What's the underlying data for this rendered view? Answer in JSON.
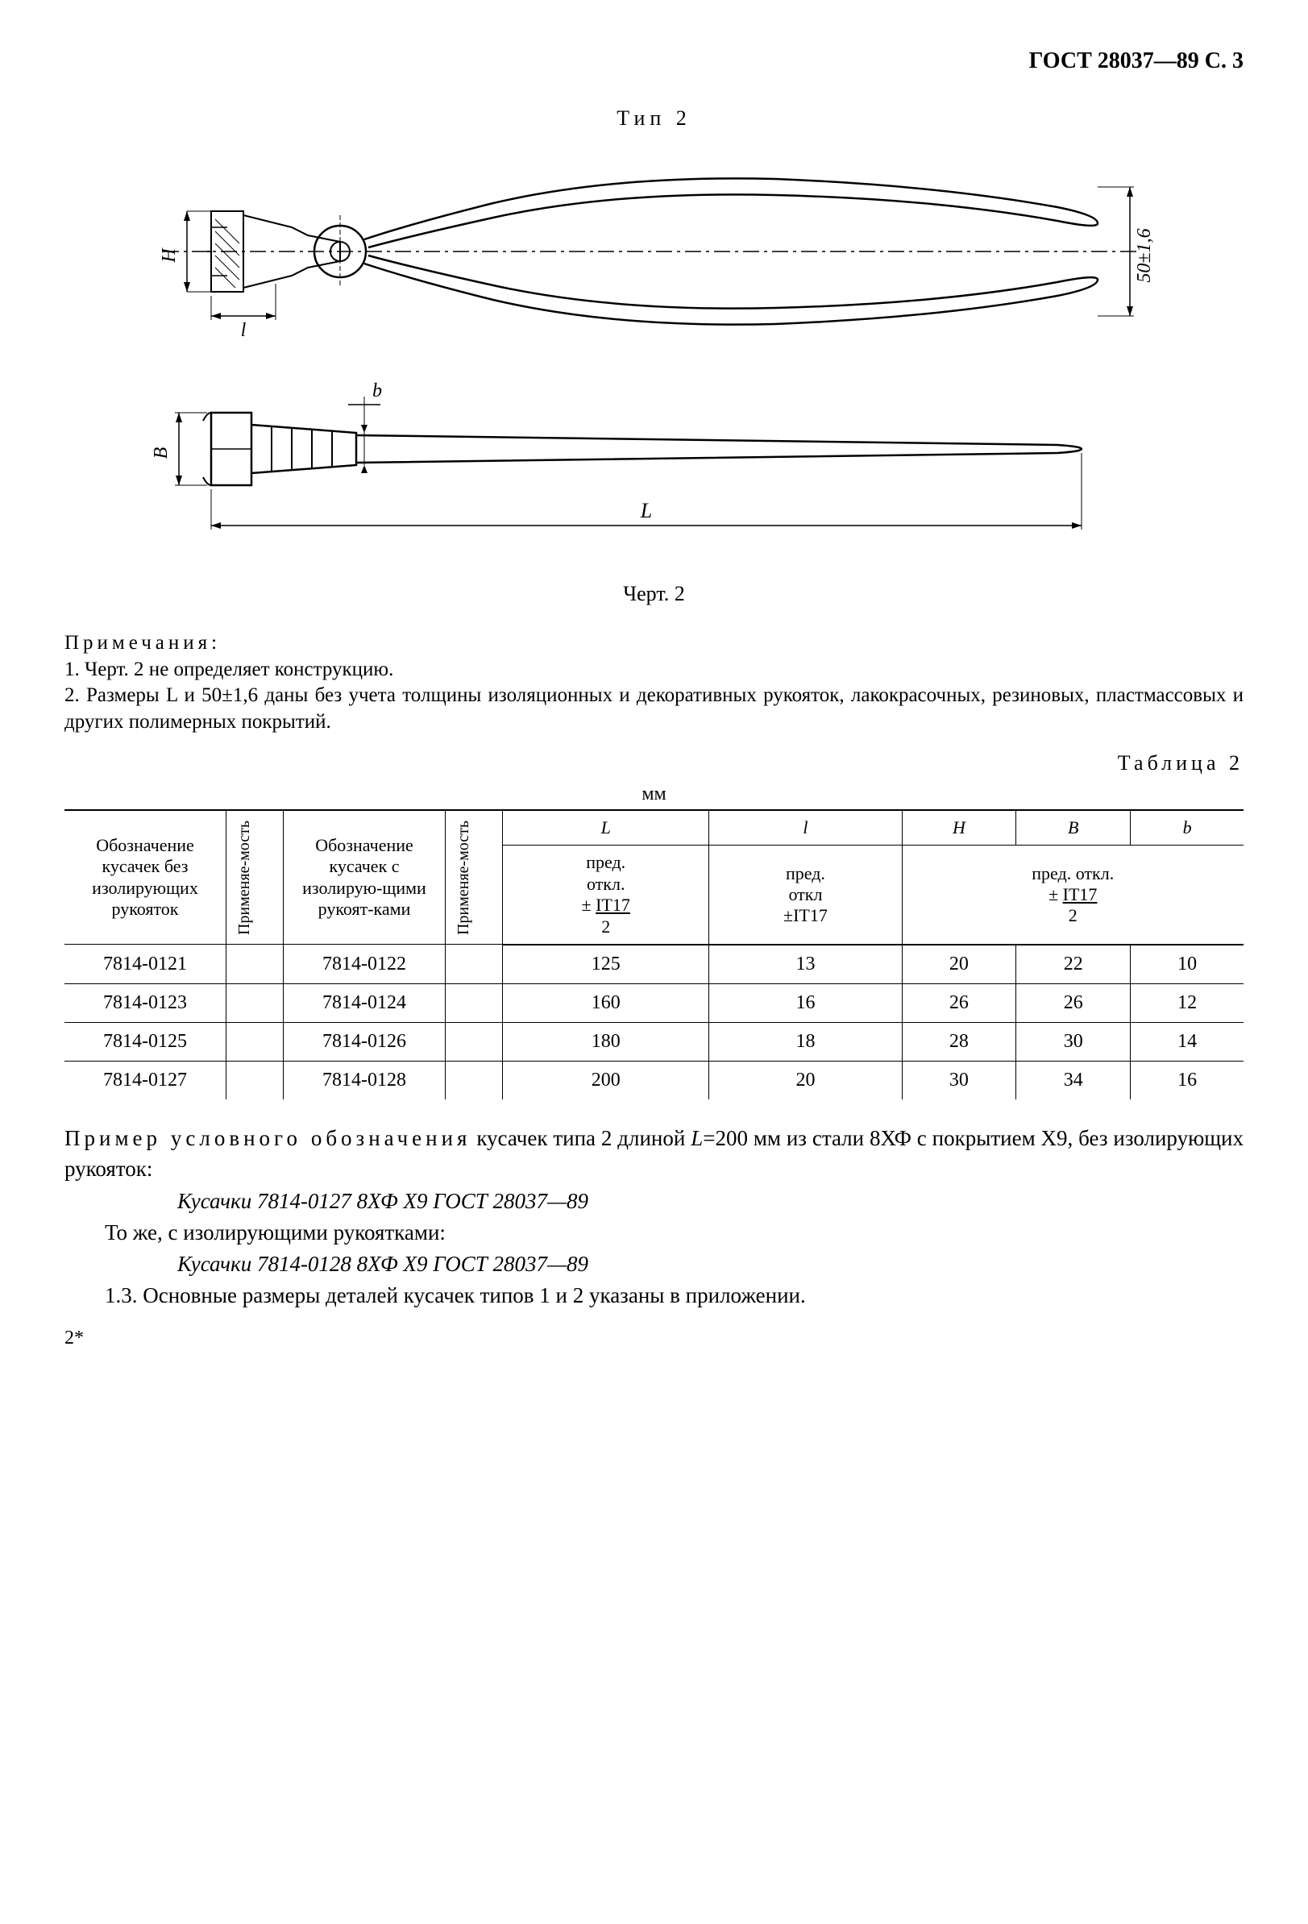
{
  "header": "ГОСТ 28037—89 С. 3",
  "figure": {
    "title": "Тип 2",
    "caption": "Черт. 2",
    "dim_label_H": "H",
    "dim_label_l": "l",
    "dim_label_B": "B",
    "dim_label_b": "b",
    "dim_label_L": "L",
    "dim_label_50": "50±1,6"
  },
  "notes": {
    "title": "Примечания:",
    "note1": "1. Черт. 2 не определяет конструкцию.",
    "note2": "2. Размеры L и 50±1,6 даны без учета толщины изоляционных и декоративных рукояток, лакокрасочных, резиновых, пластмассовых и других полимерных покрытий."
  },
  "table": {
    "title": "Таблица 2",
    "unit": "мм",
    "headers": {
      "col1": "Обозначение кусачек без изолирующих рукояток",
      "col2": "Применяе-мость",
      "col3": "Обозначение кусачек с изолирую-щими рукоят-ками",
      "col4": "Применяе-мость",
      "col_L": "L",
      "col_l": "l",
      "col_H": "H",
      "col_B": "B",
      "col_b": "b",
      "sub_L": "пред. откл. ± IT17 / 2",
      "sub_l": "пред. откл ±IT17",
      "sub_HBb": "пред. откл. ± IT17 / 2"
    },
    "rows": [
      {
        "c1": "7814-0121",
        "c2": "",
        "c3": "7814-0122",
        "c4": "",
        "L": "125",
        "l": "13",
        "H": "20",
        "B": "22",
        "b": "10"
      },
      {
        "c1": "7814-0123",
        "c2": "",
        "c3": "7814-0124",
        "c4": "",
        "L": "160",
        "l": "16",
        "H": "26",
        "B": "26",
        "b": "12"
      },
      {
        "c1": "7814-0125",
        "c2": "",
        "c3": "7814-0126",
        "c4": "",
        "L": "180",
        "l": "18",
        "H": "28",
        "B": "30",
        "b": "14"
      },
      {
        "c1": "7814-0127",
        "c2": "",
        "c3": "7814-0128",
        "c4": "",
        "L": "200",
        "l": "20",
        "H": "30",
        "B": "34",
        "b": "16"
      }
    ]
  },
  "example": {
    "intro": "Пример условного обозначения кусачек типа 2 длиной L=200 мм из стали 8ХФ с покрытием Х9, без изолирующих рукояток:",
    "designation1": "Кусачки 7814-0127 8ХФ Х9 ГОСТ 28037—89",
    "line2": "То же, с изолирующими рукоятками:",
    "designation2": "Кусачки 7814-0128 8ХФ Х9 ГОСТ 28037—89",
    "section": "1.3. Основные размеры деталей кусачек типов 1 и 2 указаны в приложении."
  },
  "footer": "2*"
}
